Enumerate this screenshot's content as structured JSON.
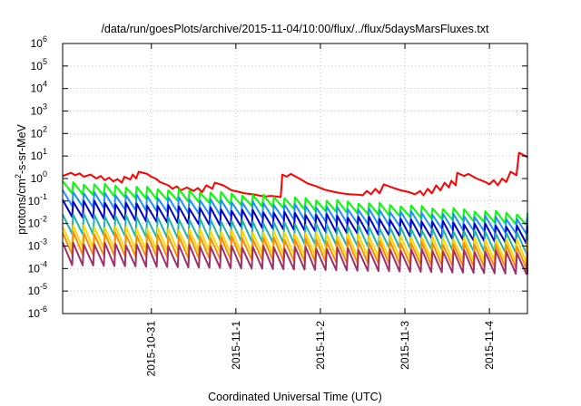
{
  "chart_data": {
    "type": "line",
    "title": "/data/run/goesPlots/archive/2015-11-04/10:00/flux/../flux/5daysMarsFluxes.txt",
    "xlabel": "Coordinated Universal Time (UTC)",
    "ylabel_parts": {
      "base": "protons/cm",
      "exp": "2",
      "rest": "-s-sr-MeV"
    },
    "y_scale": "log",
    "ylim_exp": [
      -6,
      6
    ],
    "y_ticks": [
      {
        "base": "10",
        "exp": "-6",
        "e": -6
      },
      {
        "base": "10",
        "exp": "-5",
        "e": -5
      },
      {
        "base": "10",
        "exp": "-4",
        "e": -4
      },
      {
        "base": "10",
        "exp": "-3",
        "e": -3
      },
      {
        "base": "10",
        "exp": "-2",
        "e": -2
      },
      {
        "base": "10",
        "exp": "-1",
        "e": -1
      },
      {
        "base": "10",
        "exp": "0",
        "e": 0
      },
      {
        "base": "10",
        "exp": "1",
        "e": 1
      },
      {
        "base": "10",
        "exp": "2",
        "e": 2
      },
      {
        "base": "10",
        "exp": "3",
        "e": 3
      },
      {
        "base": "10",
        "exp": "4",
        "e": 4
      },
      {
        "base": "10",
        "exp": "5",
        "e": 5
      },
      {
        "base": "10",
        "exp": "6",
        "e": 6
      }
    ],
    "x_range_days": [
      -1.05,
      4.45
    ],
    "x_ticks": [
      {
        "label": "2015-10-31",
        "day": 0
      },
      {
        "label": "2015-11-1",
        "day": 1
      },
      {
        "label": "2015-11-2",
        "day": 2
      },
      {
        "label": "2015-11-3",
        "day": 3
      },
      {
        "label": "2015-11-4",
        "day": 4
      }
    ],
    "grid": true,
    "series": [
      {
        "color": "#ff0000",
        "points": [
          [
            -1.05,
            1.3
          ],
          [
            -0.95,
            1.8
          ],
          [
            -0.9,
            1.4
          ],
          [
            -0.85,
            1.7
          ],
          [
            -0.8,
            1.2
          ],
          [
            -0.72,
            1.5
          ],
          [
            -0.65,
            1.0
          ],
          [
            -0.6,
            1.3
          ],
          [
            -0.55,
            0.85
          ],
          [
            -0.5,
            1.1
          ],
          [
            -0.45,
            0.75
          ],
          [
            -0.4,
            0.95
          ],
          [
            -0.35,
            0.65
          ],
          [
            -0.32,
            1.2
          ],
          [
            -0.25,
            0.9
          ],
          [
            -0.22,
            1.5
          ],
          [
            -0.18,
            1.0
          ],
          [
            -0.15,
            2.0
          ],
          [
            -0.05,
            1.6
          ],
          [
            0.0,
            1.2
          ],
          [
            0.05,
            1.0
          ],
          [
            0.1,
            0.7
          ],
          [
            0.2,
            0.5
          ],
          [
            0.25,
            0.35
          ],
          [
            0.3,
            0.45
          ],
          [
            0.35,
            0.3
          ],
          [
            0.42,
            0.4
          ],
          [
            0.5,
            0.28
          ],
          [
            0.55,
            0.38
          ],
          [
            0.6,
            0.25
          ],
          [
            0.65,
            0.5
          ],
          [
            0.72,
            0.35
          ],
          [
            0.75,
            0.65
          ],
          [
            0.85,
            0.5
          ],
          [
            0.95,
            0.3
          ],
          [
            1.05,
            0.25
          ],
          [
            1.1,
            0.22
          ],
          [
            1.2,
            0.2
          ],
          [
            1.3,
            0.17
          ],
          [
            1.35,
            0.16
          ],
          [
            1.42,
            0.17
          ],
          [
            1.53,
            0.15
          ],
          [
            1.55,
            1.5
          ],
          [
            1.6,
            1.2
          ],
          [
            1.65,
            1.6
          ],
          [
            1.75,
            1.0
          ],
          [
            1.85,
            0.6
          ],
          [
            1.95,
            0.45
          ],
          [
            2.05,
            0.32
          ],
          [
            2.15,
            0.26
          ],
          [
            2.25,
            0.22
          ],
          [
            2.35,
            0.2
          ],
          [
            2.45,
            0.19
          ],
          [
            2.5,
            0.18
          ],
          [
            2.55,
            0.28
          ],
          [
            2.6,
            0.2
          ],
          [
            2.65,
            0.35
          ],
          [
            2.7,
            0.22
          ],
          [
            2.75,
            0.55
          ],
          [
            2.85,
            0.4
          ],
          [
            2.95,
            0.3
          ],
          [
            3.05,
            0.25
          ],
          [
            3.12,
            0.2
          ],
          [
            3.18,
            0.28
          ],
          [
            3.22,
            0.18
          ],
          [
            3.27,
            0.35
          ],
          [
            3.32,
            0.22
          ],
          [
            3.37,
            0.5
          ],
          [
            3.42,
            0.3
          ],
          [
            3.47,
            0.65
          ],
          [
            3.52,
            0.4
          ],
          [
            3.55,
            0.8
          ],
          [
            3.6,
            0.5
          ],
          [
            3.62,
            1.8
          ],
          [
            3.7,
            1.3
          ],
          [
            3.75,
            1.6
          ],
          [
            3.85,
            1.0
          ],
          [
            3.95,
            0.7
          ],
          [
            4.0,
            0.55
          ],
          [
            4.05,
            0.85
          ],
          [
            4.1,
            0.5
          ],
          [
            4.15,
            1.0
          ],
          [
            4.2,
            0.7
          ],
          [
            4.25,
            2.0
          ],
          [
            4.32,
            1.4
          ],
          [
            4.35,
            14
          ],
          [
            4.45,
            9
          ]
        ]
      },
      {
        "color": "#00ff00",
        "start": 0.32,
        "end": 0.012,
        "amp": 2.2
      },
      {
        "color": "#1e90ff",
        "start": 0.1,
        "end": 0.0055,
        "amp": 2.8
      },
      {
        "color": "#0000cd",
        "start": 0.035,
        "end": 0.0022,
        "amp": 3.2
      },
      {
        "color": "#20b2aa",
        "start": 0.007,
        "end": 0.0009,
        "amp": 4.0
      },
      {
        "color": "#ffd700",
        "start": 0.0018,
        "end": 0.0004,
        "amp": 4.5
      },
      {
        "color": "#ff8c00",
        "start": 0.0009,
        "end": 0.00022,
        "amp": 4.5
      },
      {
        "color": "#a0306a",
        "start": 0.0003,
        "end": 0.00012,
        "amp": 4.5
      }
    ]
  }
}
